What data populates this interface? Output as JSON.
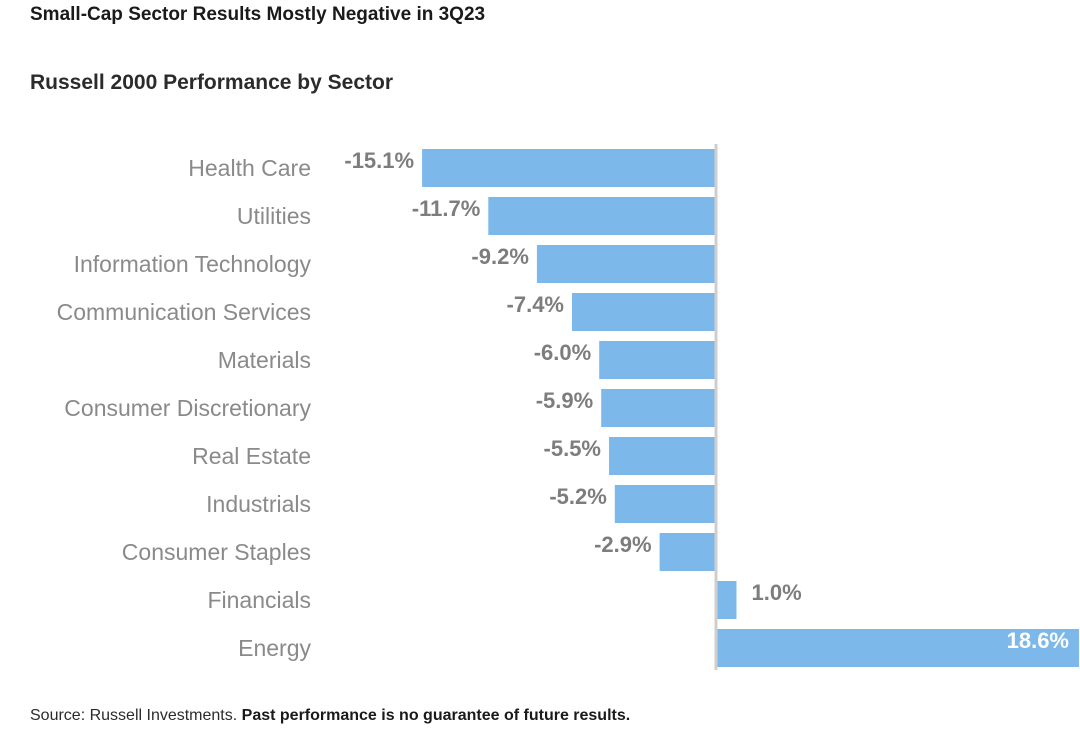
{
  "title": "Small-Cap Sector Results Mostly Negative in 3Q23",
  "subtitle": "Russell 2000 Performance by Sector",
  "source": {
    "prefix": "Source: Russell Investments.",
    "disclaimer": "Past performance is no guarantee of future results."
  },
  "colors": {
    "bar": "#7cb8ea",
    "axis": "#cfcfcf",
    "category_label": "#8a8a8a",
    "value_label": "#7d7d7d",
    "value_label_inside": "#ffffff"
  },
  "chart_data": {
    "type": "bar",
    "orientation": "horizontal",
    "categories": [
      "Health Care",
      "Utilities",
      "Information Technology",
      "Communication Services",
      "Materials",
      "Consumer Discretionary",
      "Real Estate",
      "Industrials",
      "Consumer Staples",
      "Financials",
      "Energy"
    ],
    "values": [
      -15.1,
      -11.7,
      -9.2,
      -7.4,
      -6.0,
      -5.9,
      -5.5,
      -5.2,
      -2.9,
      1.0,
      18.6
    ],
    "data_labels": [
      "-15.1%",
      "-11.7%",
      "-9.2%",
      "-7.4%",
      "-6.0%",
      "-5.9%",
      "-5.5%",
      "-5.2%",
      "-2.9%",
      "1.0%",
      "18.6%"
    ],
    "unit": "%",
    "xlim": [
      -15.1,
      18.6
    ],
    "grid": false,
    "legend": "none"
  }
}
